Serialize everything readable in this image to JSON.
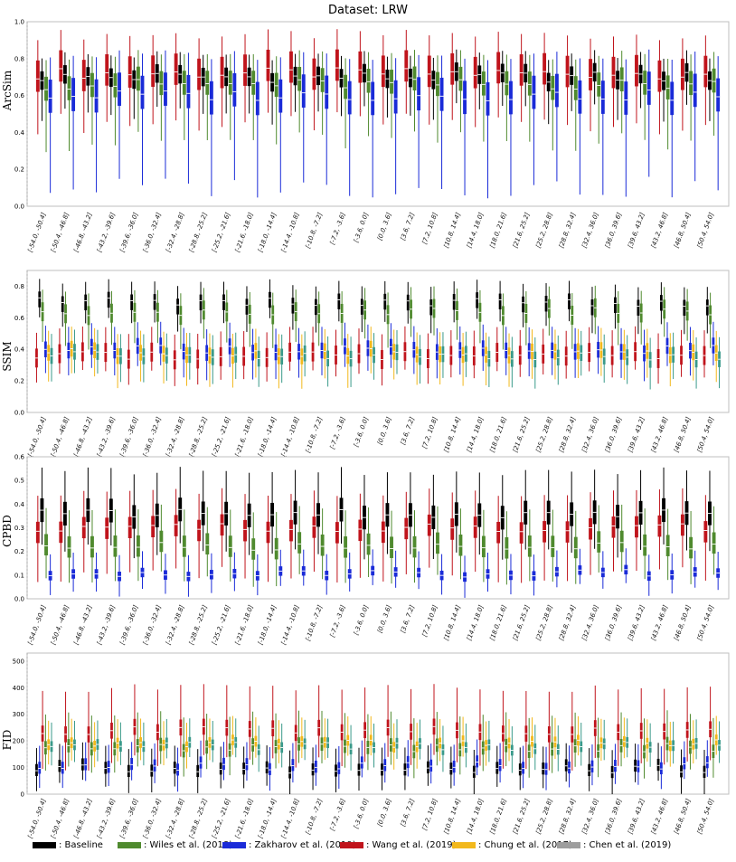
{
  "title": "Dataset: LRW",
  "legend": [
    {
      "label": ": Baseline",
      "color": "#000000",
      "swatch": "swatch-baseline",
      "left": 0
    },
    {
      "label": ": Wiles et al. (2018)",
      "color": "#4f8a2e",
      "swatch": "swatch-wiles",
      "left": 0
    },
    {
      "label": ": Zakharov et al. (2019)",
      "color": "#1a2bd8",
      "swatch": "swatch-zakharov",
      "left": 0
    },
    {
      "label": ": Wang et al. (2019)",
      "color": "#c0141c",
      "swatch": "swatch-wang",
      "left": 0
    },
    {
      "label": " : Chung et al. (2017)",
      "color": "#f2b81c",
      "swatch": "swatch-chung",
      "left": 0
    },
    {
      "label": ": Chen et al. (2019)",
      "color": "#9e9e9e",
      "swatch": "swatch-chen",
      "left": 0
    }
  ],
  "chart_data": [
    {
      "type": "box",
      "ylabel": "ArcSim",
      "ylim": [
        0.0,
        1.0
      ],
      "yticks": [
        "0.0",
        "0.2",
        "0.4",
        "0.6",
        "0.8",
        "1.0"
      ],
      "categories": [
        "[-54.0, -50.4]",
        "[-50.4, -46.8]",
        "[-46.8, -43.2]",
        "[-43.2, -39.6]",
        "[-39.6, -36.0]",
        "[-36.0, -32.4]",
        "[-32.4, -28.8]",
        "[-28.8, -25.2]",
        "[-25.2, -21.6]",
        "[-21.6, -18.0]",
        "[-18.0, -14.4]",
        "[-14.4, -10.8]",
        "[-10.8, -7.2]",
        "[-7.2, -3.6]",
        "[-3.6, 0.0]",
        "[0.0, 3.6]",
        "[3.6, 7.2]",
        "[7.2, 10.8]",
        "[10.8, 14.4]",
        "[14.4, 18.0]",
        "[18.0, 21.6]",
        "[21.6, 25.2]",
        "[25.2, 28.8]",
        "[28.8, 32.4]",
        "[32.4, 36.0]",
        "[36.0, 39.6]",
        "[39.6, 43.2]",
        "[43.2, 46.8]",
        "[46.8, 50.4]",
        "[50.4, 54.0]"
      ],
      "series": [
        {
          "name": "Wang et al. (2019)",
          "color": "#c0141c",
          "median": 0.72,
          "q1": 0.65,
          "q3": 0.82,
          "lo": 0.45,
          "hi": 0.93
        },
        {
          "name": "Baseline",
          "color": "#000000",
          "median": 0.7,
          "q1": 0.65,
          "q3": 0.75,
          "lo": 0.5,
          "hi": 0.82
        },
        {
          "name": "Wiles et al. (2018)",
          "color": "#4f8a2e",
          "median": 0.66,
          "q1": 0.6,
          "q3": 0.73,
          "lo": 0.35,
          "hi": 0.82
        },
        {
          "name": "Zakharov et al. (2019)",
          "color": "#1a2bd8",
          "median": 0.6,
          "q1": 0.52,
          "q3": 0.7,
          "lo": 0.1,
          "hi": 0.82
        }
      ]
    },
    {
      "type": "box",
      "ylabel": "SSIM",
      "ylim": [
        0.0,
        0.9
      ],
      "yticks": [
        "0.0",
        "0.2",
        "0.4",
        "0.6",
        "0.8"
      ],
      "categories": [
        "[-54.0, -50.4]",
        "[-50.4, -46.8]",
        "[-46.8, -43.2]",
        "[-43.2, -39.6]",
        "[-39.6, -36.0]",
        "[-36.0, -32.4]",
        "[-32.4, -28.8]",
        "[-28.8, -25.2]",
        "[-25.2, -21.6]",
        "[-21.6, -18.0]",
        "[-18.0, -14.4]",
        "[-14.4, -10.8]",
        "[-10.8, -7.2]",
        "[-7.2, -3.6]",
        "[-3.6, 0.0]",
        "[0.0, 3.6]",
        "[3.6, 7.2]",
        "[7.2, 10.8]",
        "[10.8, 14.4]",
        "[14.4, 18.0]",
        "[18.0, 21.6]",
        "[21.6, 25.2]",
        "[25.2, 28.8]",
        "[28.8, 32.4]",
        "[32.4, 36.0]",
        "[36.0, 39.6]",
        "[39.6, 43.2]",
        "[43.2, 46.8]",
        "[46.8, 50.4]",
        "[50.4, 54.0]"
      ],
      "series": [
        {
          "name": "Wang et al. (2019)",
          "color": "#c0141c",
          "median": 0.36,
          "q1": 0.3,
          "q3": 0.42,
          "lo": 0.22,
          "hi": 0.52
        },
        {
          "name": "Baseline",
          "color": "#000000",
          "median": 0.7,
          "q1": 0.64,
          "q3": 0.74,
          "lo": 0.55,
          "hi": 0.82
        },
        {
          "name": "Wiles et al. (2018)",
          "color": "#4f8a2e",
          "median": 0.64,
          "q1": 0.58,
          "q3": 0.7,
          "lo": 0.45,
          "hi": 0.78
        },
        {
          "name": "Zakharov et al. (2019)",
          "color": "#1a2bd8",
          "median": 0.4,
          "q1": 0.35,
          "q3": 0.45,
          "lo": 0.25,
          "hi": 0.55
        },
        {
          "name": "Chung et al. (2017)",
          "color": "#f2b81c",
          "median": 0.38,
          "q1": 0.33,
          "q3": 0.43,
          "lo": 0.2,
          "hi": 0.52
        },
        {
          "name": "Chen et al. (2019)",
          "color": "#3a9a8a",
          "median": 0.36,
          "q1": 0.31,
          "q3": 0.41,
          "lo": 0.2,
          "hi": 0.5
        }
      ]
    },
    {
      "type": "box",
      "ylabel": "CPBD",
      "ylim": [
        0.0,
        0.6
      ],
      "yticks": [
        "0.0",
        "0.1",
        "0.2",
        "0.3",
        "0.4",
        "0.5",
        "0.6"
      ],
      "categories": [
        "[-54.0, -50.4]",
        "[-50.4, -46.8]",
        "[-46.8, -43.2]",
        "[-43.2, -39.6]",
        "[-39.6, -36.0]",
        "[-36.0, -32.4]",
        "[-32.4, -28.8]",
        "[-28.8, -25.2]",
        "[-25.2, -21.6]",
        "[-21.6, -18.0]",
        "[-18.0, -14.4]",
        "[-14.4, -10.8]",
        "[-10.8, -7.2]",
        "[-7.2, -3.6]",
        "[-3.6, 0.0]",
        "[0.0, 3.6]",
        "[3.6, 7.2]",
        "[7.2, 10.8]",
        "[10.8, 14.4]",
        "[14.4, 18.0]",
        "[18.0, 21.6]",
        "[21.6, 25.2]",
        "[25.2, 28.8]",
        "[28.8, 32.4]",
        "[32.4, 36.0]",
        "[36.0, 39.6]",
        "[39.6, 43.2]",
        "[43.2, 46.8]",
        "[46.8, 50.4]",
        "[50.4, 54.0]"
      ],
      "series": [
        {
          "name": "Wang et al. (2019)",
          "color": "#c0141c",
          "median": 0.3,
          "q1": 0.25,
          "q3": 0.34,
          "lo": 0.1,
          "hi": 0.45
        },
        {
          "name": "Baseline",
          "color": "#000000",
          "median": 0.36,
          "q1": 0.31,
          "q3": 0.41,
          "lo": 0.2,
          "hi": 0.54
        },
        {
          "name": "Wiles et al. (2018)",
          "color": "#4f8a2e",
          "median": 0.22,
          "q1": 0.18,
          "q3": 0.27,
          "lo": 0.08,
          "hi": 0.38
        },
        {
          "name": "Zakharov et al. (2019)",
          "color": "#1a2bd8",
          "median": 0.11,
          "q1": 0.09,
          "q3": 0.13,
          "lo": 0.04,
          "hi": 0.2
        }
      ]
    },
    {
      "type": "box",
      "ylabel": "FID",
      "ylim": [
        0,
        530
      ],
      "yticks": [
        "0",
        "100",
        "200",
        "300",
        "400",
        "500"
      ],
      "categories": [
        "[-54.0, -50.4]",
        "[-50.4, -46.8]",
        "[-46.8, -43.2]",
        "[-43.2, -39.6]",
        "[-39.6, -36.0]",
        "[-36.0, -32.4]",
        "[-32.4, -28.8]",
        "[-28.8, -25.2]",
        "[-25.2, -21.6]",
        "[-21.6, -18.0]",
        "[-18.0, -14.4]",
        "[-14.4, -10.8]",
        "[-10.8, -7.2]",
        "[-7.2, -3.6]",
        "[-3.6, 0.0]",
        "[0.0, 3.6]",
        "[3.6, 7.2]",
        "[7.2, 10.8]",
        "[10.8, 14.4]",
        "[14.4, 18.0]",
        "[18.0, 21.6]",
        "[21.6, 25.2]",
        "[25.2, 28.8]",
        "[28.8, 32.4]",
        "[32.4, 36.0]",
        "[36.0, 39.6]",
        "[39.6, 43.2]",
        "[43.2, 46.8]",
        "[46.8, 50.4]",
        "[50.4, 54.0]"
      ],
      "series": [
        {
          "name": "Baseline",
          "color": "#000000",
          "median": 95,
          "q1": 75,
          "q3": 120,
          "lo": 25,
          "hi": 180
        },
        {
          "name": "Zakharov et al. (2019)",
          "color": "#1a2bd8",
          "median": 105,
          "q1": 85,
          "q3": 130,
          "lo": 40,
          "hi": 190
        },
        {
          "name": "Wang et al. (2019)",
          "color": "#c0141c",
          "median": 240,
          "q1": 210,
          "q3": 270,
          "lo": 120,
          "hi": 400
        },
        {
          "name": "Wiles et al. (2018)",
          "color": "#4f8a2e",
          "median": 175,
          "q1": 150,
          "q3": 200,
          "lo": 90,
          "hi": 300
        },
        {
          "name": "Chung et al. (2017)",
          "color": "#f2b81c",
          "median": 190,
          "q1": 170,
          "q3": 210,
          "lo": 120,
          "hi": 280
        },
        {
          "name": "Chen et al. (2019)",
          "color": "#3a9a8a",
          "median": 180,
          "q1": 160,
          "q3": 200,
          "lo": 110,
          "hi": 270
        }
      ]
    }
  ]
}
